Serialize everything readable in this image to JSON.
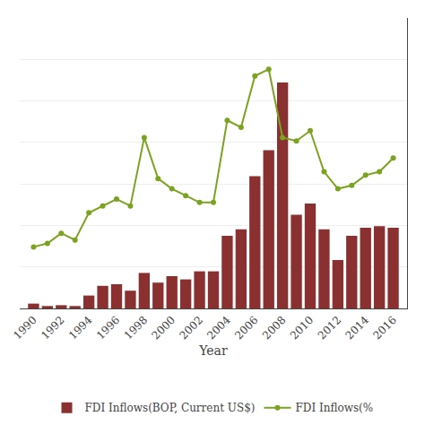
{
  "chart_data": {
    "type": "bar",
    "xlabel": "Year",
    "x": [
      1990,
      1991,
      1992,
      1993,
      1994,
      1995,
      1996,
      1997,
      1998,
      1999,
      2000,
      2001,
      2002,
      2003,
      2004,
      2005,
      2006,
      2007,
      2008,
      2009,
      2010,
      2011,
      2012,
      2013,
      2014,
      2015,
      2016
    ],
    "xlim": [
      1989.0,
      2017.0
    ],
    "xticks": [
      1990,
      1992,
      1994,
      1996,
      1998,
      2000,
      2002,
      2004,
      2006,
      2008,
      2010,
      2012,
      2014,
      2016
    ],
    "ylim": [
      0,
      18
    ],
    "yticks": [
      0,
      2.5714285714285716,
      5.142857142857143,
      7.714285714285714,
      10.285714285714286,
      12.857142857142858,
      15.428571428571429,
      18
    ],
    "y2lim": [
      0,
      8.5
    ],
    "grid": true,
    "legend": "bottom",
    "tick_labels": "x",
    "series": [
      {
        "name": "FDI Inflows(BOP, Current US$)",
        "type": "bar",
        "color": "#8B3030",
        "values": [
          0.3,
          0.15,
          0.2,
          0.15,
          0.8,
          1.4,
          1.5,
          1.1,
          2.2,
          1.6,
          2.0,
          1.8,
          2.3,
          2.3,
          4.5,
          4.9,
          8.2,
          9.8,
          14.0,
          5.8,
          6.5,
          4.9,
          3.0,
          4.5,
          5.0,
          5.1,
          5.0
        ]
      },
      {
        "name": "FDI Inflows(%",
        "type": "line",
        "axis": "y2",
        "color": "#7BA320",
        "marker": "circle",
        "values": [
          1.8,
          1.9,
          2.2,
          2.0,
          2.8,
          3.0,
          3.2,
          3.0,
          5.0,
          3.8,
          3.5,
          3.3,
          3.1,
          3.1,
          5.5,
          5.3,
          6.8,
          7.0,
          5.0,
          4.9,
          5.2,
          4.0,
          3.5,
          3.6,
          3.9,
          4.0,
          4.4
        ]
      }
    ]
  }
}
